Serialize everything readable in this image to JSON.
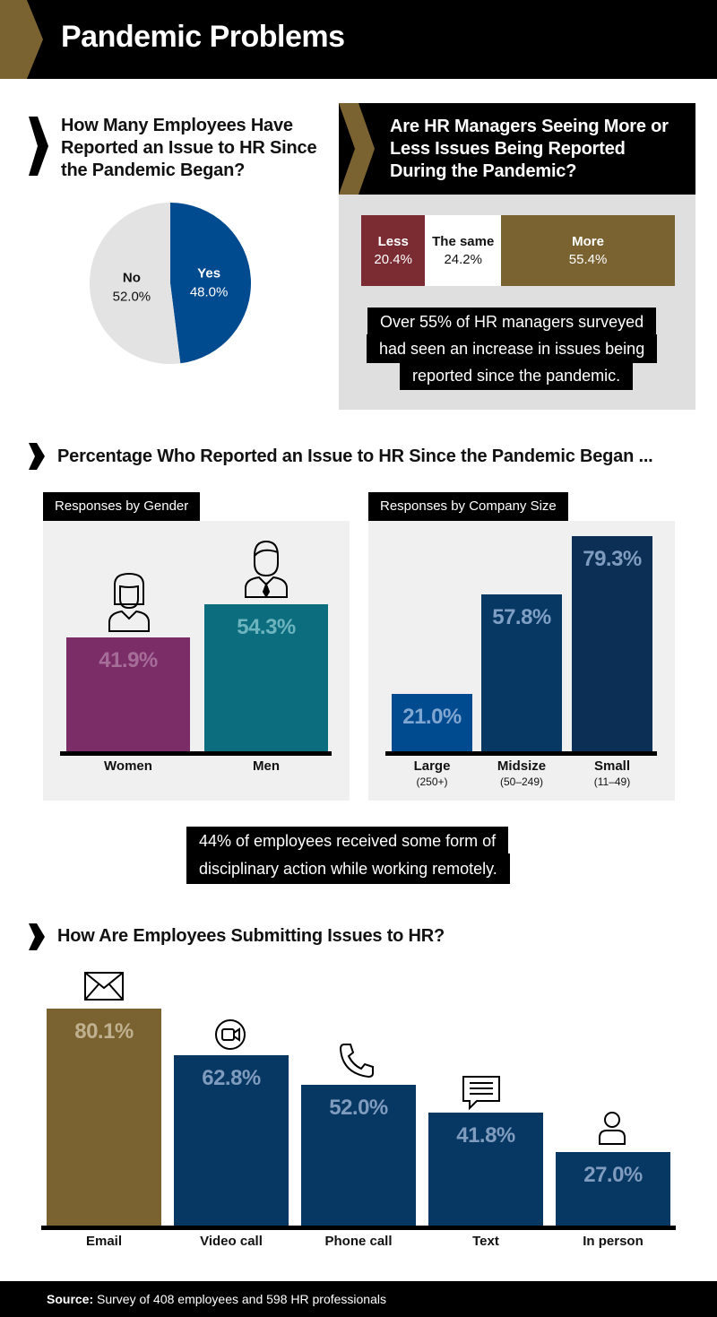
{
  "header": {
    "title": "Pandemic Problems"
  },
  "colors": {
    "gold": "#7b6331",
    "blue": "#004a8f",
    "navy": "#073763",
    "dark_navy": "#0b2f55",
    "purple": "#7b2d68",
    "teal": "#0b6d7d",
    "maroon": "#7b2c33",
    "light_gray": "#dfdfdf"
  },
  "pie_section": {
    "title": "How Many Employees Have Reported an Issue to HR Since the Pandemic Began?"
  },
  "hr_section": {
    "title": "Are HR Managers Seeing More or Less Issues Being Reported During the Pandemic?",
    "highlight_lines": [
      "Over 55% of HR managers surveyed",
      "had seen an increase in issues being",
      "reported since the pandemic."
    ]
  },
  "section2": {
    "title": "Percentage Who Reported an Issue to HR Since the Pandemic Began ..."
  },
  "gender_panel": {
    "tag": "Responses by Gender"
  },
  "size_panel": {
    "tag": "Responses by Company Size"
  },
  "discipline_note": {
    "lines": [
      "44% of employees received some form of",
      "disciplinary action while working remotely."
    ]
  },
  "section3": {
    "title": "How Are Employees Submitting Issues to HR?"
  },
  "footer": {
    "label": "Source:",
    "text": " Survey of 408 employees and 598 HR professionals"
  },
  "chart_data": [
    {
      "type": "pie",
      "title": "How Many Employees Have Reported an Issue to HR Since the Pandemic Began?",
      "categories": [
        "Yes",
        "No"
      ],
      "values": [
        48.0,
        52.0
      ],
      "labels": [
        "48.0%",
        "52.0%"
      ]
    },
    {
      "type": "bar",
      "orientation": "horizontal-stacked",
      "title": "Are HR Managers Seeing More or Less Issues Being Reported During the Pandemic?",
      "categories": [
        "Less",
        "The same",
        "More"
      ],
      "values": [
        20.4,
        24.2,
        55.4
      ],
      "labels": [
        "20.4%",
        "24.2%",
        "55.4%"
      ]
    },
    {
      "type": "bar",
      "title": "Responses by Gender",
      "categories": [
        "Women",
        "Men"
      ],
      "values": [
        41.9,
        54.3
      ],
      "labels": [
        "41.9%",
        "54.3%"
      ]
    },
    {
      "type": "bar",
      "title": "Responses by Company Size",
      "categories": [
        "Large",
        "Midsize",
        "Small"
      ],
      "sublabels": [
        "(250+)",
        "(50–249)",
        "(11–49)"
      ],
      "values": [
        21.0,
        57.8,
        79.3
      ],
      "labels": [
        "21.0%",
        "57.8%",
        "79.3%"
      ]
    },
    {
      "type": "bar",
      "title": "How Are Employees Submitting Issues to HR?",
      "categories": [
        "Email",
        "Video call",
        "Phone call",
        "Text",
        "In person"
      ],
      "icons": [
        "envelope-icon",
        "video-camera-icon",
        "phone-icon",
        "chat-bubble-icon",
        "person-icon"
      ],
      "values": [
        80.1,
        62.8,
        52.0,
        41.8,
        27.0
      ],
      "labels": [
        "80.1%",
        "62.8%",
        "52.0%",
        "41.8%",
        "27.0%"
      ]
    }
  ]
}
